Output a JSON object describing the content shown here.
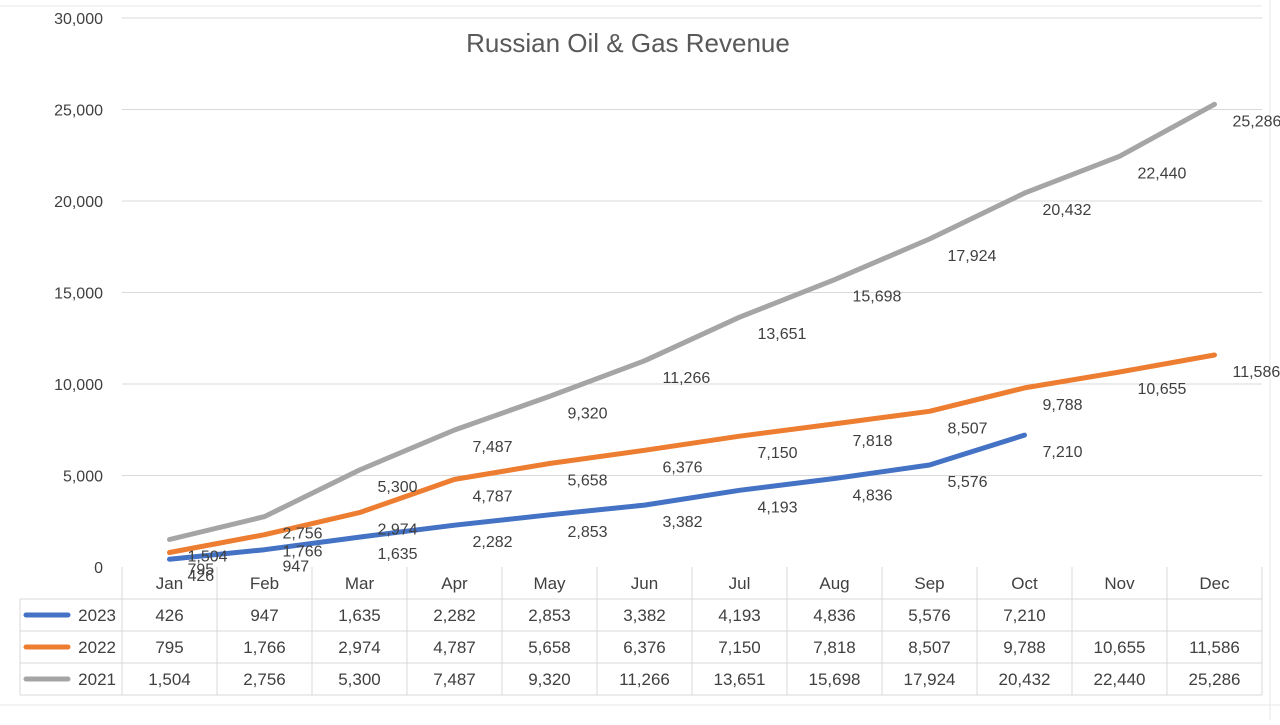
{
  "chart_data": {
    "type": "line",
    "title": "Russian Oil & Gas Revenue",
    "xlabel": "",
    "ylabel": "",
    "categories": [
      "Jan",
      "Feb",
      "Mar",
      "Apr",
      "May",
      "Jun",
      "Jul",
      "Aug",
      "Sep",
      "Oct",
      "Nov",
      "Dec"
    ],
    "ylim": [
      0,
      30000
    ],
    "yticks": [
      "0",
      "5,000",
      "10,000",
      "15,000",
      "20,000",
      "25,000",
      "30,000"
    ],
    "grid": true,
    "legend": "data-table",
    "series": [
      {
        "name": "2023",
        "color": "#4472c4",
        "values": [
          426,
          947,
          1635,
          2282,
          2853,
          3382,
          4193,
          4836,
          5576,
          7210,
          null,
          null
        ],
        "labels": [
          "426",
          "947",
          "1,635",
          "2,282",
          "2,853",
          "3,382",
          "4,193",
          "4,836",
          "5,576",
          "7,210",
          "",
          ""
        ]
      },
      {
        "name": "2022",
        "color": "#ed7d31",
        "values": [
          795,
          1766,
          2974,
          4787,
          5658,
          6376,
          7150,
          7818,
          8507,
          9788,
          10655,
          11586
        ],
        "labels": [
          "795",
          "1,766",
          "2,974",
          "4,787",
          "5,658",
          "6,376",
          "7,150",
          "7,818",
          "8,507",
          "9,788",
          "10,655",
          "11,586"
        ]
      },
      {
        "name": "2021",
        "color": "#a5a5a5",
        "values": [
          1504,
          2756,
          5300,
          7487,
          9320,
          11266,
          13651,
          15698,
          17924,
          20432,
          22440,
          25286
        ],
        "labels": [
          "1,504",
          "2,756",
          "5,300",
          "7,487",
          "9,320",
          "11,266",
          "13,651",
          "15,698",
          "17,924",
          "20,432",
          "22,440",
          "25,286"
        ]
      }
    ]
  }
}
